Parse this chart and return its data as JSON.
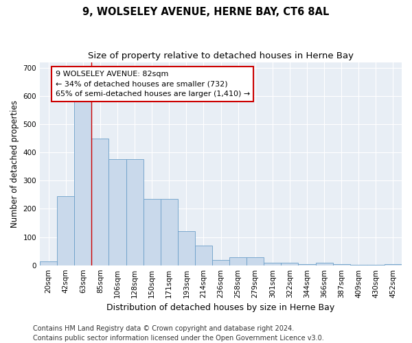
{
  "title": "9, WOLSELEY AVENUE, HERNE BAY, CT6 8AL",
  "subtitle": "Size of property relative to detached houses in Herne Bay",
  "xlabel": "Distribution of detached houses by size in Herne Bay",
  "ylabel": "Number of detached properties",
  "categories": [
    "20sqm",
    "42sqm",
    "63sqm",
    "85sqm",
    "106sqm",
    "128sqm",
    "150sqm",
    "171sqm",
    "193sqm",
    "214sqm",
    "236sqm",
    "258sqm",
    "279sqm",
    "301sqm",
    "322sqm",
    "344sqm",
    "366sqm",
    "387sqm",
    "409sqm",
    "430sqm",
    "452sqm"
  ],
  "values": [
    15,
    245,
    585,
    450,
    375,
    375,
    235,
    235,
    120,
    70,
    18,
    28,
    28,
    10,
    10,
    5,
    8,
    5,
    1,
    1,
    5
  ],
  "bar_color": "#c9d9eb",
  "bar_edge_color": "#6b9ec8",
  "red_line_x": 2.5,
  "annotation_box_text": "9 WOLSELEY AVENUE: 82sqm\n← 34% of detached houses are smaller (732)\n65% of semi-detached houses are larger (1,410) →",
  "ylim": [
    0,
    720
  ],
  "yticks": [
    0,
    100,
    200,
    300,
    400,
    500,
    600,
    700
  ],
  "background_color": "#e8eef5",
  "grid_color": "#ffffff",
  "footer_text": "Contains HM Land Registry data © Crown copyright and database right 2024.\nContains public sector information licensed under the Open Government Licence v3.0.",
  "red_line_color": "#cc0000",
  "annotation_font_size": 8,
  "title_font_size": 10.5,
  "subtitle_font_size": 9.5,
  "xlabel_font_size": 9,
  "ylabel_font_size": 8.5,
  "tick_font_size": 7.5,
  "footer_font_size": 7
}
